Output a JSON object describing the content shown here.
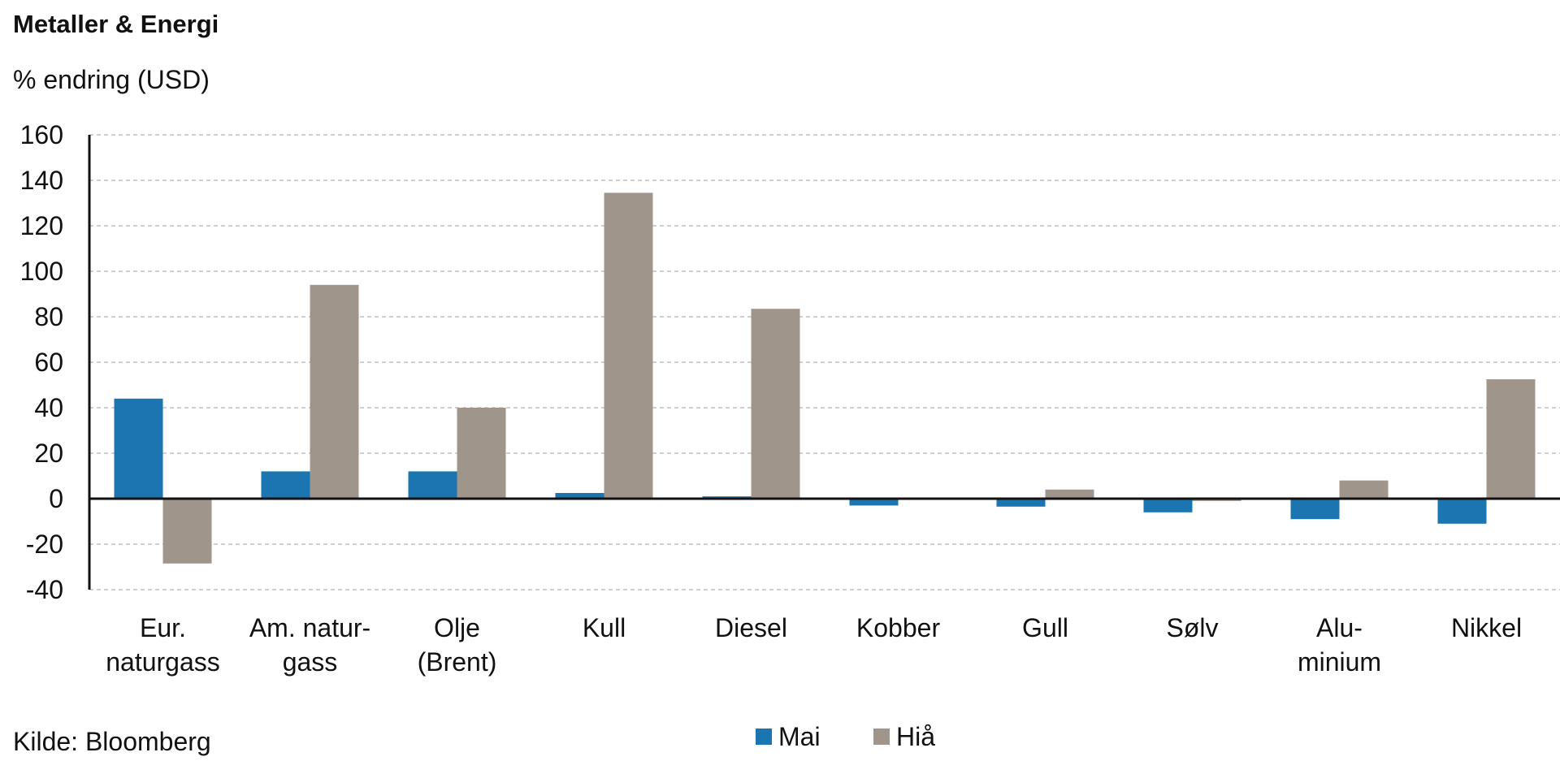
{
  "title": "Metaller & Energi",
  "source": "Kilde: Bloomberg",
  "chart_data": {
    "type": "bar",
    "title": "Metaller & Energi",
    "ylabel": "% endring (USD)",
    "xlabel": "",
    "ylim": [
      -40,
      160
    ],
    "yticks": [
      160,
      140,
      120,
      100,
      80,
      60,
      40,
      20,
      0,
      -20,
      -40
    ],
    "grid": true,
    "legend_position": "bottom-center",
    "categories": [
      [
        "Eur.",
        "naturgass"
      ],
      [
        "Am. natur-",
        "gass"
      ],
      [
        "Olje",
        "(Brent)"
      ],
      [
        "Kull"
      ],
      [
        "Diesel"
      ],
      [
        "Kobber"
      ],
      [
        "Gull"
      ],
      [
        "Sølv"
      ],
      [
        "Alu-",
        "minium"
      ],
      [
        "Nikkel"
      ]
    ],
    "series": [
      {
        "name": "Mai",
        "color": "#1a75b0",
        "values": [
          44,
          12,
          12,
          2.5,
          1,
          -3,
          -3.5,
          -6,
          -9,
          -11
        ]
      },
      {
        "name": "Hiå",
        "color": "#a0958b",
        "values": [
          -28.5,
          94,
          40,
          134.5,
          83.5,
          0,
          4,
          -1,
          8,
          52.5
        ]
      }
    ]
  }
}
